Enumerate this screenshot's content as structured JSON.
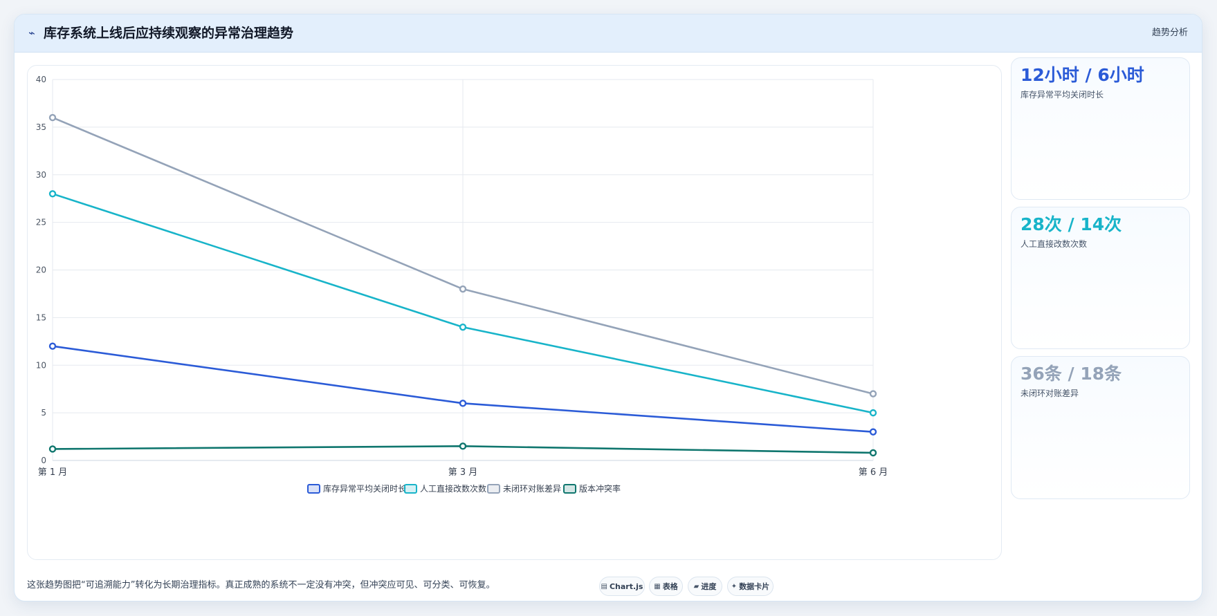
{
  "header": {
    "icon": "chart-line-icon",
    "title": "库存系统上线后应持续观察的异常治理趋势",
    "tag": "趋势分析"
  },
  "chart_data": {
    "type": "line",
    "categories": [
      "第 1 月",
      "第 3 月",
      "第 6 月"
    ],
    "ylim": [
      0,
      40
    ],
    "yticks": [
      0,
      5,
      10,
      15,
      20,
      25,
      30,
      35,
      40
    ],
    "grid": true,
    "legend_position": "bottom",
    "series": [
      {
        "name": "库存异常平均关闭时长",
        "values": [
          12,
          6,
          3
        ],
        "color": "#2b5bd7"
      },
      {
        "name": "人工直接改数次数",
        "values": [
          28,
          14,
          5
        ],
        "color": "#18b4c9"
      },
      {
        "name": "未闭环对账差异",
        "values": [
          36,
          18,
          7
        ],
        "color": "#94a3b8"
      },
      {
        "name": "版本冲突率",
        "values": [
          1.2,
          1.5,
          0.8
        ],
        "color": "#0f766e"
      }
    ]
  },
  "kpis": [
    {
      "value": "12小时 / 6小时",
      "label": "库存异常平均关闭时长",
      "color": "#2b5bd7"
    },
    {
      "value": "28次 / 14次",
      "label": "人工直接改数次数",
      "color": "#18b4c9"
    },
    {
      "value": "36条 / 18条",
      "label": "未闭环对账差异",
      "color": "#94a3b8"
    }
  ],
  "footer": {
    "text": "这张趋势图把“可追溯能力”转化为长期治理指标。真正成熟的系统不一定没有冲突，但冲突应可见、可分类、可恢复。",
    "pills": [
      {
        "icon": "chart-icon",
        "glyph": "▤",
        "label": "Chart.js"
      },
      {
        "icon": "table-icon",
        "glyph": "▦",
        "label": "表格"
      },
      {
        "icon": "progress-icon",
        "glyph": "▰",
        "label": "进度"
      },
      {
        "icon": "sparkle-icon",
        "glyph": "✦",
        "label": "数据卡片"
      }
    ]
  }
}
